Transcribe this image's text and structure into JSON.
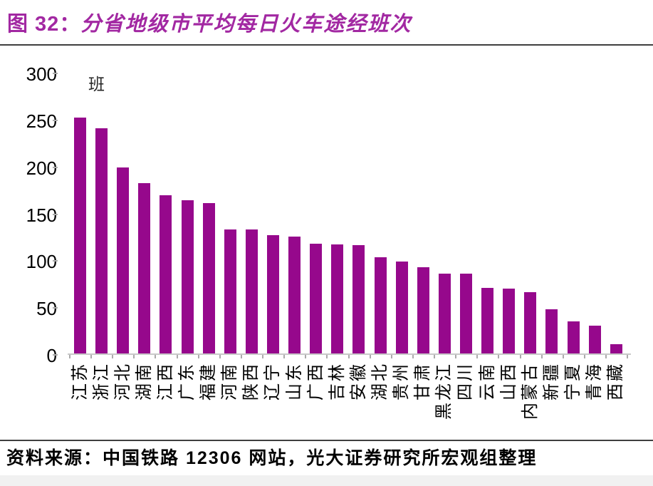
{
  "figure": {
    "prefix": "图 32：",
    "title": "分省地级市平均每日火车途经班次"
  },
  "chart_data": {
    "type": "bar",
    "figure_label": "图 32",
    "title": "分省地级市平均每日火车途经班次",
    "unit_label": "班",
    "categories": [
      "江苏",
      "浙江",
      "河北",
      "湖南",
      "江西",
      "广东",
      "福建",
      "河南",
      "陕西",
      "辽宁",
      "山东",
      "广西",
      "吉林",
      "安徽",
      "湖北",
      "贵州",
      "甘肃",
      "黑龙江",
      "四川",
      "云南",
      "山西",
      "内蒙古",
      "新疆",
      "宁夏",
      "青海",
      "西藏"
    ],
    "values": [
      252,
      241,
      199,
      182,
      169,
      164,
      161,
      133,
      133,
      127,
      125,
      118,
      117,
      116,
      103,
      99,
      93,
      86,
      86,
      71,
      70,
      66,
      48,
      35,
      30,
      11
    ],
    "ylim": [
      0,
      300
    ],
    "yticks": [
      0,
      50,
      100,
      150,
      200,
      250,
      300
    ],
    "grid": false,
    "legend": false,
    "bar_color": "#96088C"
  },
  "footer": {
    "source": "资料来源：中国铁路 12306 网站，光大证券研究所宏观组整理"
  },
  "colors": {
    "title": "#A228A2",
    "bar": "#96088C",
    "separator": "#3F3F3F",
    "axis_line": "#C9C9C9",
    "tick": "#ABABAB",
    "text": "#000000",
    "bottom_strip": "#F1F1F1"
  }
}
